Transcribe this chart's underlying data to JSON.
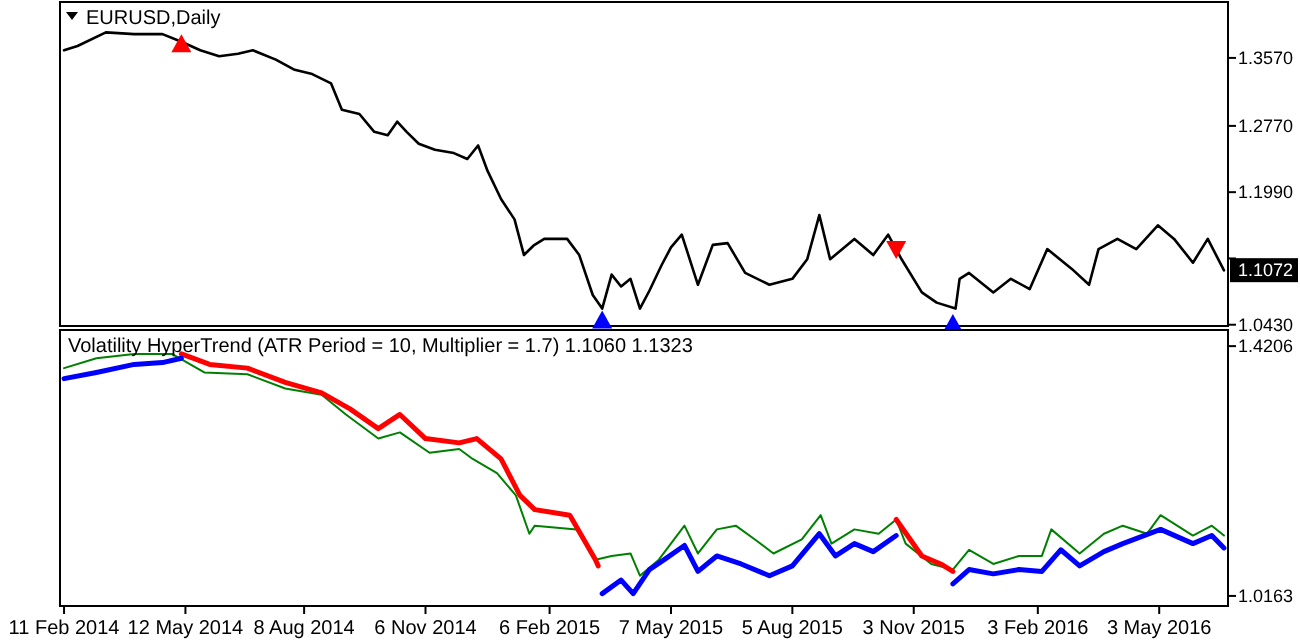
{
  "chart_data": [
    {
      "type": "line",
      "title": "EURUSD,Daily",
      "xlim": [
        "2014-02-08",
        "2016-06-23"
      ],
      "ylim": [
        1.0415,
        1.4228
      ],
      "yticks": [
        {
          "value": 1.357,
          "label": "1.3570"
        },
        {
          "value": 1.277,
          "label": "1.2770"
        },
        {
          "value": 1.199,
          "label": "1.1990"
        },
        {
          "value": 1.121,
          "label": null
        },
        {
          "value": 1.043,
          "label": "1.0430"
        }
      ],
      "tick_labels": "y",
      "grid": false,
      "annotations": [
        {
          "text": "1.1072",
          "x": "2016-06-20",
          "y": 1.1072
        }
      ],
      "series": [
        {
          "color": "#000000",
          "marker": "none",
          "x": [
            "2014-02-11",
            "2014-02-21",
            "2014-03-14",
            "2014-04-04",
            "2014-04-25",
            "2014-05-09",
            "2014-05-23",
            "2014-06-06",
            "2014-06-20",
            "2014-07-01",
            "2014-07-18",
            "2014-08-01",
            "2014-08-14",
            "2014-08-28",
            "2014-09-05",
            "2014-09-18",
            "2014-09-29",
            "2014-10-09",
            "2014-10-16",
            "2014-10-23",
            "2014-11-01",
            "2014-11-13",
            "2014-11-27",
            "2014-12-07",
            "2014-12-15",
            "2014-12-22",
            "2015-01-01",
            "2015-01-11",
            "2015-01-18",
            "2015-01-25",
            "2015-02-02",
            "2015-02-19",
            "2015-02-28",
            "2015-03-10",
            "2015-03-17",
            "2015-03-24",
            "2015-03-31",
            "2015-04-07",
            "2015-04-14",
            "2015-04-21",
            "2015-04-30",
            "2015-05-07",
            "2015-05-15",
            "2015-05-27",
            "2015-06-07",
            "2015-06-18",
            "2015-07-01",
            "2015-07-19",
            "2015-08-05",
            "2015-08-16",
            "2015-08-25",
            "2015-09-02",
            "2015-09-20",
            "2015-10-04",
            "2015-10-15",
            "2015-10-25",
            "2015-11-09",
            "2015-11-20",
            "2015-12-04",
            "2015-12-07",
            "2015-12-14",
            "2016-01-01",
            "2016-01-14",
            "2016-01-28",
            "2016-02-10",
            "2016-02-28",
            "2016-03-12",
            "2016-03-19",
            "2016-04-02",
            "2016-04-16",
            "2016-05-02",
            "2016-05-14",
            "2016-05-28",
            "2016-06-08",
            "2016-06-20"
          ],
          "values": [
            1.366,
            1.371,
            1.387,
            1.385,
            1.385,
            1.376,
            1.366,
            1.359,
            1.362,
            1.366,
            1.355,
            1.343,
            1.338,
            1.327,
            1.296,
            1.291,
            1.27,
            1.266,
            1.282,
            1.27,
            1.256,
            1.249,
            1.245,
            1.238,
            1.254,
            1.224,
            1.191,
            1.167,
            1.125,
            1.136,
            1.144,
            1.144,
            1.125,
            1.078,
            1.062,
            1.102,
            1.088,
            1.097,
            1.062,
            1.083,
            1.113,
            1.134,
            1.149,
            1.09,
            1.137,
            1.139,
            1.104,
            1.09,
            1.097,
            1.12,
            1.172,
            1.12,
            1.144,
            1.125,
            1.149,
            1.12,
            1.081,
            1.069,
            1.062,
            1.097,
            1.104,
            1.081,
            1.097,
            1.085,
            1.132,
            1.109,
            1.09,
            1.132,
            1.144,
            1.132,
            1.16,
            1.144,
            1.116,
            1.144,
            1.107
          ]
        },
        {
          "type": "scatter",
          "color": "#ff0000",
          "marker": "triangle",
          "x": [
            "2014-05-09",
            "2015-10-21"
          ],
          "values": [
            1.373,
            1.132
          ]
        },
        {
          "type": "scatter",
          "color": "#0000ff",
          "marker": "triangle",
          "x": [
            "2015-03-17",
            "2015-12-02"
          ],
          "values": [
            1.048,
            1.044
          ]
        }
      ]
    },
    {
      "type": "line",
      "title": "Volatility HyperTrend (ATR Period = 10, Multiplier = 1.7) 1.1060 1.1323",
      "xlim": [
        "2014-02-08",
        "2016-06-23"
      ],
      "ylim": [
        1.0,
        1.4467
      ],
      "xticks": [
        {
          "value": "2014-02-11",
          "label": "11 Feb 2014"
        },
        {
          "value": "2014-05-12",
          "label": "12 May 2014"
        },
        {
          "value": "2014-08-08",
          "label": "8 Aug 2014"
        },
        {
          "value": "2014-11-06",
          "label": "6 Nov 2014"
        },
        {
          "value": "2015-02-06",
          "label": "6 Feb 2015"
        },
        {
          "value": "2015-05-07",
          "label": "7 May 2015"
        },
        {
          "value": "2015-08-05",
          "label": "5 Aug 2015"
        },
        {
          "value": "2015-11-03",
          "label": "3 Nov 2015"
        },
        {
          "value": "2016-02-03",
          "label": "3 Feb 2016"
        },
        {
          "value": "2016-05-03",
          "label": "3 May 2016"
        }
      ],
      "yticks": [
        {
          "value": 1.4206,
          "label": "1.4206"
        },
        {
          "value": 1.0163,
          "label": "1.0163"
        }
      ],
      "grid": false,
      "series": [
        {
          "color": "#008000",
          "marker": "none",
          "x": [
            "2014-02-11",
            "2014-03-07",
            "2014-04-04",
            "2014-05-02",
            "2014-05-26",
            "2014-06-27",
            "2014-07-25",
            "2014-08-21",
            "2014-09-08",
            "2014-10-02",
            "2014-10-18",
            "2014-11-09",
            "2014-12-01",
            "2014-12-11",
            "2014-12-29",
            "2015-01-12",
            "2015-01-22",
            "2015-01-26",
            "2015-02-26",
            "2015-03-12",
            "2015-03-24",
            "2015-04-07",
            "2015-04-14",
            "2015-04-28",
            "2015-05-17",
            "2015-05-27",
            "2015-06-10",
            "2015-06-24",
            "2015-07-08",
            "2015-07-22",
            "2015-08-12",
            "2015-08-26",
            "2015-09-03",
            "2015-09-20",
            "2015-10-08",
            "2015-10-21",
            "2015-10-28",
            "2015-11-16",
            "2015-12-02",
            "2015-12-14",
            "2016-01-01",
            "2016-01-20",
            "2016-02-06",
            "2016-02-13",
            "2016-03-05",
            "2016-03-23",
            "2016-04-06",
            "2016-04-24",
            "2016-05-04",
            "2016-05-28",
            "2016-06-11",
            "2016-06-20"
          ],
          "values": [
            1.385,
            1.401,
            1.408,
            1.408,
            1.378,
            1.375,
            1.352,
            1.342,
            1.31,
            1.271,
            1.281,
            1.248,
            1.254,
            1.238,
            1.215,
            1.179,
            1.117,
            1.13,
            1.124,
            1.075,
            1.081,
            1.085,
            1.049,
            1.075,
            1.13,
            1.085,
            1.124,
            1.13,
            1.108,
            1.085,
            1.108,
            1.147,
            1.101,
            1.124,
            1.117,
            1.14,
            1.101,
            1.068,
            1.059,
            1.091,
            1.068,
            1.081,
            1.081,
            1.124,
            1.085,
            1.117,
            1.13,
            1.117,
            1.147,
            1.114,
            1.13,
            1.114
          ]
        },
        {
          "color": "#ff0000",
          "marker": "none",
          "x": [
            "2014-05-09",
            "2014-05-30",
            "2014-06-27",
            "2014-07-25",
            "2014-08-21",
            "2014-09-11",
            "2014-10-02",
            "2014-10-18",
            "2014-11-06",
            "2014-12-01",
            "2014-12-14",
            "2015-01-01",
            "2015-01-15",
            "2015-01-26",
            "2015-02-21",
            "2015-03-12",
            "2015-03-14",
            "2015-07-01",
            "2015-10-21",
            "2015-11-09",
            "2015-11-23",
            "2015-12-02"
          ],
          "values": [
            1.408,
            1.391,
            1.385,
            1.362,
            1.345,
            1.319,
            1.287,
            1.31,
            1.271,
            1.264,
            1.271,
            1.238,
            1.179,
            1.156,
            1.147,
            1.075,
            1.065,
            null,
            1.14,
            1.081,
            1.068,
            1.056
          ]
        },
        {
          "color": "#0000ff",
          "marker": "none",
          "x": [
            "2014-02-11",
            "2014-03-07",
            "2014-04-04",
            "2014-04-25",
            "2014-05-09",
            "2014-07-01",
            "2015-03-17",
            "2015-03-31",
            "2015-04-09",
            "2015-04-21",
            "2015-05-02",
            "2015-05-17",
            "2015-05-27",
            "2015-06-10",
            "2015-06-28",
            "2015-07-19",
            "2015-08-05",
            "2015-08-25",
            "2015-09-06",
            "2015-09-20",
            "2015-10-04",
            "2015-10-21",
            "2015-11-05",
            "2015-12-02",
            "2015-12-14",
            "2016-01-01",
            "2016-01-20",
            "2016-02-06",
            "2016-02-20",
            "2016-03-05",
            "2016-03-23",
            "2016-04-06",
            "2016-05-04",
            "2016-05-28",
            "2016-06-11",
            "2016-06-20"
          ],
          "values": [
            1.368,
            1.378,
            1.391,
            1.394,
            1.401,
            null,
            1.02,
            1.042,
            1.02,
            1.059,
            1.075,
            1.098,
            1.056,
            1.081,
            1.068,
            1.049,
            1.065,
            1.117,
            1.081,
            1.101,
            1.088,
            1.114,
            null,
            1.036,
            1.059,
            1.052,
            1.059,
            1.056,
            1.091,
            1.065,
            1.088,
            1.101,
            1.124,
            1.101,
            1.114,
            1.094
          ]
        }
      ]
    }
  ]
}
